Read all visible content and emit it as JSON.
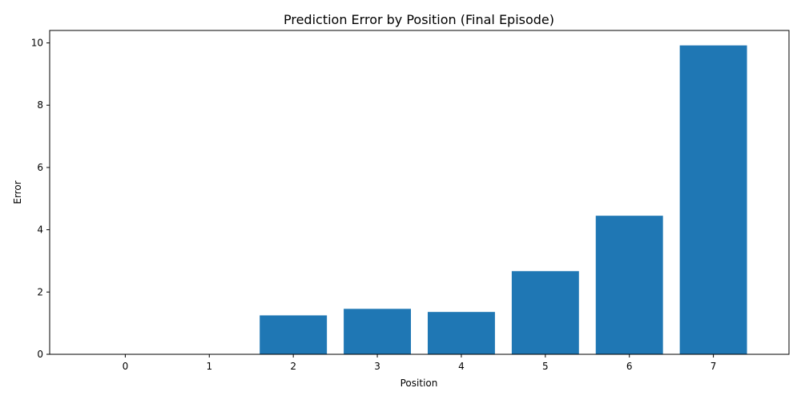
{
  "chart_data": {
    "type": "bar",
    "title": "Prediction Error by Position (Final Episode)",
    "xlabel": "Position",
    "ylabel": "Error",
    "categories": [
      "0",
      "1",
      "2",
      "3",
      "4",
      "5",
      "6",
      "7"
    ],
    "values": [
      0,
      0,
      1.25,
      1.46,
      1.36,
      2.67,
      4.45,
      9.92
    ],
    "ylim": [
      0,
      10.4
    ],
    "yticks": [
      "0",
      "2",
      "4",
      "6",
      "8",
      "10"
    ],
    "bar_color": "#1f77b4",
    "grid": false,
    "legend": "none"
  }
}
